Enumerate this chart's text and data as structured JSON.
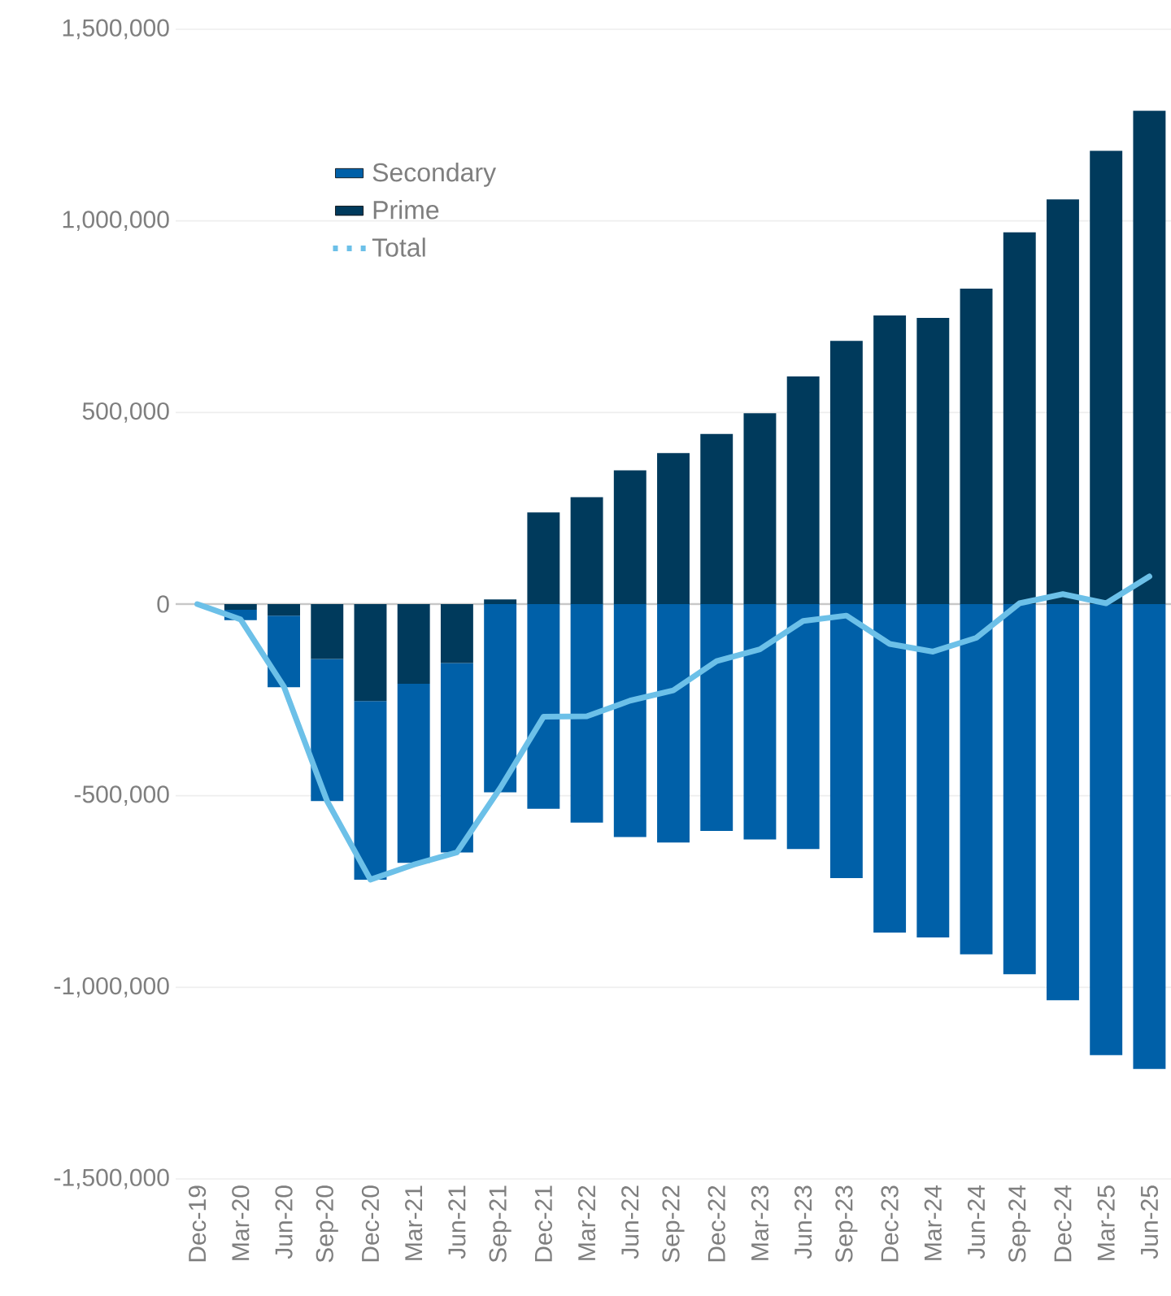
{
  "chart_data": {
    "type": "bar",
    "stacked": true,
    "categories": [
      "Dec-19",
      "Mar-20",
      "Jun-20",
      "Sep-20",
      "Dec-20",
      "Mar-21",
      "Jun-21",
      "Sep-21",
      "Dec-21",
      "Mar-22",
      "Jun-22",
      "Sep-22",
      "Dec-22",
      "Mar-23",
      "Jun-23",
      "Sep-23",
      "Dec-23",
      "Mar-24",
      "Jun-24",
      "Sep-24",
      "Dec-24",
      "Mar-25",
      "Jun-25"
    ],
    "series": [
      {
        "name": "Prime",
        "color": "#003a5c",
        "values": [
          0,
          -15000,
          -30000,
          -143000,
          -253000,
          -208000,
          -154000,
          12000,
          239000,
          279000,
          349000,
          394000,
          444000,
          498000,
          594000,
          687000,
          753000,
          747000,
          823000,
          970000,
          1056000,
          1183000,
          1287000
        ]
      },
      {
        "name": "Secondary",
        "color": "#0060a8",
        "values": [
          0,
          -27000,
          -187000,
          -371000,
          -466000,
          -467000,
          -494000,
          -491000,
          -534000,
          -570000,
          -608000,
          -622000,
          -592000,
          -614000,
          -639000,
          -715000,
          -857000,
          -870000,
          -914000,
          -966000,
          -1034000,
          -1177000,
          -1213000
        ]
      },
      {
        "name": "Total",
        "type": "line",
        "color": "#6cc0e8",
        "values": [
          0,
          -40000,
          -215000,
          -514000,
          -719000,
          -680000,
          -648000,
          -480000,
          -294000,
          -293000,
          -252000,
          -225000,
          -149000,
          -118000,
          -44000,
          -30000,
          -104000,
          -124000,
          -88000,
          2000,
          26000,
          2000,
          72000
        ]
      }
    ],
    "ylim": [
      -1500000,
      1500000
    ],
    "yticks": [
      {
        "value": -1500000,
        "label": "-1,500,000"
      },
      {
        "value": -1000000,
        "label": "-1,000,000"
      },
      {
        "value": -500000,
        "label": "-500,000"
      },
      0,
      {
        "value": 500000,
        "label": "500,000"
      },
      {
        "value": 1000000,
        "label": "1,000,000"
      },
      {
        "value": 1500000,
        "label": "1,500,000"
      }
    ],
    "grid": "y",
    "legend": "top left",
    "line_style": "solid",
    "marker": "none"
  }
}
